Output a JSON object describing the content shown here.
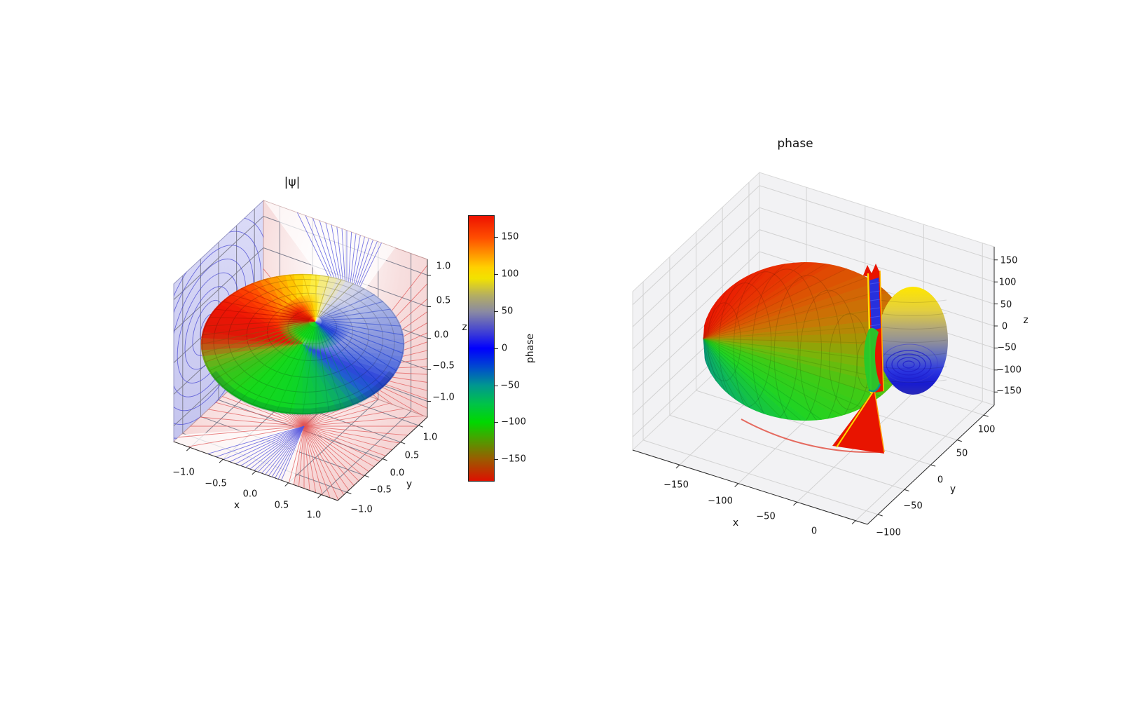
{
  "left_plot": {
    "title": "|ψ|",
    "xlabel": "x",
    "ylabel": "y",
    "zlabel": "z",
    "x_tick_labels": [
      "−1.0",
      "−0.5",
      "0.0",
      "0.5",
      "1.0"
    ],
    "y_tick_labels": [
      "−1.0",
      "−0.5",
      "0.0",
      "0.5",
      "1.0"
    ],
    "z_tick_labels": [
      "1.0",
      "0.5",
      "0.0",
      "−0.5",
      "−1.0"
    ]
  },
  "colorbar": {
    "label": "phase",
    "tick_labels": [
      "150",
      "100",
      "50",
      "0",
      "−50",
      "−100",
      "−150"
    ]
  },
  "right_plot": {
    "title": "phase",
    "xlabel": "x",
    "ylabel": "y",
    "zlabel": "z",
    "x_tick_labels": [
      "−150",
      "−100",
      "−50",
      "0"
    ],
    "y_tick_labels": [
      "100",
      "50",
      "0",
      "−50",
      "−100"
    ],
    "z_tick_labels": [
      "150",
      "100",
      "50",
      "0",
      "−50",
      "−100",
      "−150"
    ]
  },
  "chart_data": [
    {
      "type": "surface3d",
      "title": "|ψ|",
      "xlabel": "x",
      "ylabel": "y",
      "zlabel": "z",
      "x_ticks": [
        -1.0,
        -0.5,
        0.0,
        0.5,
        1.0
      ],
      "y_ticks": [
        -1.0,
        -0.5,
        0.0,
        0.5,
        1.0
      ],
      "z_ticks": [
        -1.0,
        -0.5,
        0.0,
        0.5,
        1.0
      ],
      "xlim": [
        -1.25,
        1.25
      ],
      "ylim": [
        -1.25,
        1.25
      ],
      "zlim": [
        -1.25,
        1.25
      ],
      "grid": true,
      "description": "Torus-shaped |psi| isosurface centered at origin, surface colored by azimuthal phase (-180..180 deg); phase projection fans drawn on the y-pane and z-pane (red/blue line fans) and |psi| contour rings on the x-pane (blue ovals on lavender)."
    },
    {
      "type": "colorbar",
      "label": "phase",
      "ticks": [
        150,
        100,
        50,
        0,
        -50,
        -100,
        -150
      ],
      "range": [
        -180,
        180
      ],
      "orientation": "vertical"
    },
    {
      "type": "surface3d",
      "title": "phase",
      "xlabel": "x",
      "ylabel": "y",
      "zlabel": "z",
      "x_ticks": [
        -150,
        -100,
        -50,
        0
      ],
      "y_ticks": [
        -100,
        -50,
        0,
        50,
        100
      ],
      "z_ticks": [
        -150,
        -100,
        -50,
        0,
        50,
        100,
        150
      ],
      "xlim": [
        -190,
        10
      ],
      "ylim": [
        -120,
        120
      ],
      "zlim": [
        -180,
        180
      ],
      "grid": true,
      "description": "Phase rendered as a radial 3D surface (radius proportional to phase in degrees) with the same cyclic phase colormap: large red/green lobe on the left (phase near ±180/-100), small yellow-to-blue lobe on the right (phase +100..0), and a red discontinuity sheet at ±180 deg seen edge-on as a vertical slab."
    }
  ],
  "palette": {
    "text": "#141414",
    "spine": "#2a2a2a",
    "pane_right": "#f2f2f4",
    "grid_right": "#d2d2d2",
    "grid_left": "#808090",
    "left_wall_bottom": "#c4c4ee",
    "left_wall_top": "#dcdcf8",
    "wall_contour": "#4646d2",
    "pink_wall": "#f3cccc",
    "pink_floor": "#f6d6d6",
    "red_fan": "#e05555",
    "blue_fan": "#5555dd",
    "slab_red": "#e81400",
    "slab_yellow": "#ffe000",
    "slab_orange": "#ffb300",
    "slab_blue": "#2730dd",
    "neck_green": "#23ca2c",
    "phase_stops": [
      [
        -180,
        "#dd1000"
      ],
      [
        -150,
        "#9a5c00"
      ],
      [
        -125,
        "#4f9c00"
      ],
      [
        -100,
        "#00d800"
      ],
      [
        -75,
        "#00c24a"
      ],
      [
        -50,
        "#009690"
      ],
      [
        -25,
        "#0048d0"
      ],
      [
        0,
        "#0000fe"
      ],
      [
        20,
        "#3a3ad8"
      ],
      [
        50,
        "#8a8aa2"
      ],
      [
        72,
        "#b4ae62"
      ],
      [
        95,
        "#f2e200"
      ],
      [
        110,
        "#ffd000"
      ],
      [
        125,
        "#ffa000"
      ],
      [
        150,
        "#ff4e00"
      ],
      [
        180,
        "#ee1200"
      ]
    ],
    "torus_fill": [
      [
        0,
        "#8492dd"
      ],
      [
        20,
        "#96a2e0"
      ],
      [
        45,
        "#b6bfe8"
      ],
      [
        62,
        "#d8d9ea"
      ],
      [
        74,
        "#efe9a8"
      ],
      [
        84,
        "#ffee33"
      ],
      [
        95,
        "#ffcf00"
      ],
      [
        108,
        "#ff9900"
      ],
      [
        125,
        "#ff4400"
      ],
      [
        145,
        "#ee1505"
      ],
      [
        170,
        "#e01606"
      ],
      [
        182,
        "#c05515"
      ],
      [
        192,
        "#7daa18"
      ],
      [
        205,
        "#3fc01c"
      ],
      [
        230,
        "#16d81a"
      ],
      [
        262,
        "#0ed626"
      ],
      [
        288,
        "#0cbb55"
      ],
      [
        300,
        "#0d9e7c"
      ],
      [
        312,
        "#1f5fd0"
      ],
      [
        325,
        "#2e45da"
      ],
      [
        340,
        "#5570de"
      ],
      [
        360,
        "#8492dd"
      ]
    ],
    "torus_mesh": [
      [
        0,
        "#3350d8"
      ],
      [
        45,
        "#5868c8"
      ],
      [
        70,
        "#b8ac30"
      ],
      [
        85,
        "#e8c800"
      ],
      [
        100,
        "#e09000"
      ],
      [
        120,
        "#d83000"
      ],
      [
        150,
        "#c01000"
      ],
      [
        175,
        "#b02808"
      ],
      [
        188,
        "#907010"
      ],
      [
        200,
        "#45a008"
      ],
      [
        235,
        "#0cc60e"
      ],
      [
        265,
        "#06c418"
      ],
      [
        290,
        "#089858"
      ],
      [
        305,
        "#0b6fa0"
      ],
      [
        322,
        "#1738c8"
      ],
      [
        360,
        "#3350d8"
      ]
    ],
    "blob_fill": [
      [
        -85,
        "#0b9a7e"
      ],
      [
        -60,
        "#0fb85a"
      ],
      [
        -38,
        "#1ed424"
      ],
      [
        -20,
        "#3ecb16"
      ],
      [
        -8,
        "#7ab40a"
      ],
      [
        0,
        "#a69405"
      ],
      [
        8,
        "#c57a06"
      ],
      [
        20,
        "#d95c04"
      ],
      [
        35,
        "#e63a02"
      ],
      [
        55,
        "#ea2202"
      ],
      [
        85,
        "#ee1502"
      ]
    ],
    "blob_mesh": [
      [
        -85,
        "#067a62"
      ],
      [
        -50,
        "#0aa62e"
      ],
      [
        -25,
        "#1fae10"
      ],
      [
        -8,
        "#5e9408"
      ],
      [
        5,
        "#9c7a02"
      ],
      [
        20,
        "#b54a02"
      ],
      [
        40,
        "#c22802"
      ],
      [
        85,
        "#c01000"
      ]
    ],
    "lobe_grad": [
      [
        0,
        "#ffe600"
      ],
      [
        0.22,
        "#e3cf3f"
      ],
      [
        0.38,
        "#b3a877"
      ],
      [
        0.52,
        "#8c8d9d"
      ],
      [
        0.65,
        "#5968c6"
      ],
      [
        0.78,
        "#2b35e0"
      ],
      [
        0.9,
        "#181bd0"
      ],
      [
        1,
        "#2a2ab8"
      ]
    ]
  }
}
